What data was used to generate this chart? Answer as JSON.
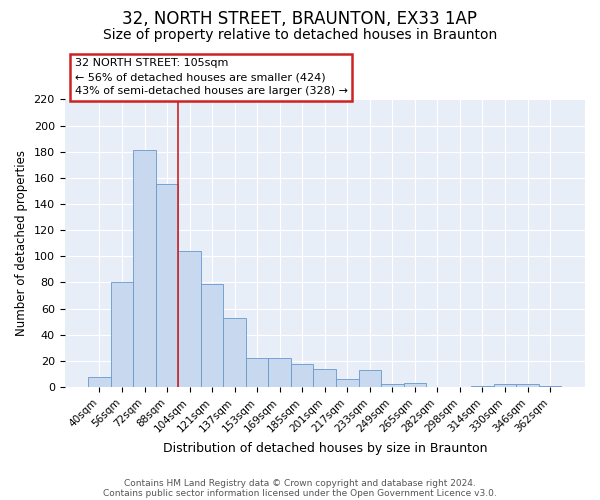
{
  "title": "32, NORTH STREET, BRAUNTON, EX33 1AP",
  "subtitle": "Size of property relative to detached houses in Braunton",
  "xlabel": "Distribution of detached houses by size in Braunton",
  "ylabel": "Number of detached properties",
  "bar_labels": [
    "40sqm",
    "56sqm",
    "72sqm",
    "88sqm",
    "104sqm",
    "121sqm",
    "137sqm",
    "153sqm",
    "169sqm",
    "185sqm",
    "201sqm",
    "217sqm",
    "233sqm",
    "249sqm",
    "265sqm",
    "282sqm",
    "298sqm",
    "314sqm",
    "330sqm",
    "346sqm",
    "362sqm"
  ],
  "bar_heights": [
    8,
    80,
    181,
    155,
    104,
    79,
    53,
    22,
    22,
    18,
    14,
    6,
    13,
    2,
    3,
    0,
    0,
    1,
    2,
    2,
    1
  ],
  "bar_color": "#c8d8ee",
  "bar_edge_color": "#6699cc",
  "vline_position": 3.5,
  "vline_color": "#cc2222",
  "ylim": [
    0,
    220
  ],
  "yticks": [
    0,
    20,
    40,
    60,
    80,
    100,
    120,
    140,
    160,
    180,
    200,
    220
  ],
  "annotation_title": "32 NORTH STREET: 105sqm",
  "annotation_line1": "← 56% of detached houses are smaller (424)",
  "annotation_line2": "43% of semi-detached houses are larger (328) →",
  "annotation_box_facecolor": "#ffffff",
  "annotation_box_edgecolor": "#cc2222",
  "footer_line1": "Contains HM Land Registry data © Crown copyright and database right 2024.",
  "footer_line2": "Contains public sector information licensed under the Open Government Licence v3.0.",
  "bg_color": "#ffffff",
  "plot_bg_color": "#e8eef8",
  "grid_color": "#ffffff",
  "title_fontsize": 12,
  "subtitle_fontsize": 10
}
